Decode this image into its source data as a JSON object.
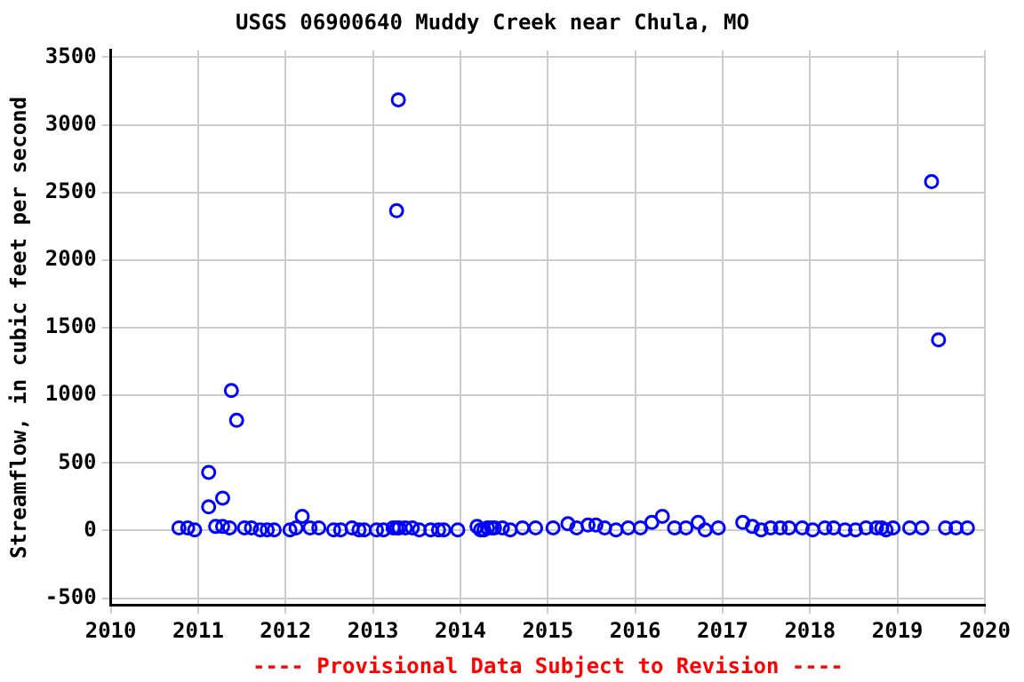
{
  "chart_data": {
    "type": "scatter",
    "title": "USGS 06900640 Muddy Creek near Chula, MO",
    "ylabel": "Streamflow, in cubic feet per second",
    "annotations": [
      "---- Provisional Data Subject to Revision ----"
    ],
    "xlim": [
      2010,
      2020
    ],
    "xticks": [
      2010,
      2011,
      2012,
      2013,
      2014,
      2015,
      2016,
      2017,
      2018,
      2019,
      2020
    ],
    "ylim": [
      -550,
      3550
    ],
    "yticks": [
      -500,
      0,
      500,
      1000,
      1500,
      2000,
      2500,
      3000,
      3500
    ],
    "grid": true,
    "marker": "circle",
    "legend": false,
    "series": [
      {
        "color": "#0000ff",
        "x": [
          2010.78,
          2010.88,
          2010.96,
          2011.12,
          2011.12,
          2011.2,
          2011.28,
          2011.28,
          2011.36,
          2011.38,
          2011.44,
          2011.53,
          2011.61,
          2011.71,
          2011.79,
          2011.87,
          2012.05,
          2012.12,
          2012.19,
          2012.28,
          2012.38,
          2012.55,
          2012.63,
          2012.76,
          2012.84,
          2012.9,
          2013.04,
          2013.12,
          2013.23,
          2013.27,
          2013.27,
          2013.29,
          2013.3,
          2013.37,
          2013.45,
          2013.53,
          2013.66,
          2013.75,
          2013.81,
          2013.97,
          2014.19,
          2014.23,
          2014.27,
          2014.31,
          2014.36,
          2014.39,
          2014.48,
          2014.57,
          2014.71,
          2014.86,
          2015.06,
          2015.23,
          2015.33,
          2015.46,
          2015.55,
          2015.65,
          2015.78,
          2015.92,
          2016.06,
          2016.19,
          2016.31,
          2016.45,
          2016.58,
          2016.72,
          2016.8,
          2016.95,
          2017.23,
          2017.34,
          2017.44,
          2017.55,
          2017.66,
          2017.76,
          2017.91,
          2018.03,
          2018.17,
          2018.27,
          2018.4,
          2018.52,
          2018.64,
          2018.76,
          2018.82,
          2018.87,
          2018.95,
          2019.14,
          2019.28,
          2019.39,
          2019.47,
          2019.55,
          2019.67,
          2019.8
        ],
        "values": [
          20,
          20,
          5,
          430,
          175,
          30,
          240,
          30,
          20,
          1035,
          815,
          20,
          20,
          5,
          5,
          5,
          5,
          20,
          105,
          20,
          20,
          5,
          5,
          20,
          5,
          5,
          5,
          5,
          20,
          20,
          2365,
          3185,
          20,
          20,
          20,
          5,
          5,
          5,
          5,
          5,
          30,
          5,
          5,
          20,
          20,
          20,
          20,
          5,
          20,
          20,
          20,
          50,
          20,
          40,
          40,
          20,
          5,
          20,
          20,
          60,
          105,
          20,
          20,
          60,
          5,
          20,
          60,
          30,
          5,
          20,
          20,
          20,
          20,
          5,
          20,
          20,
          5,
          5,
          20,
          20,
          20,
          5,
          20,
          20,
          20,
          2580,
          1410,
          20,
          20,
          20
        ]
      }
    ]
  }
}
